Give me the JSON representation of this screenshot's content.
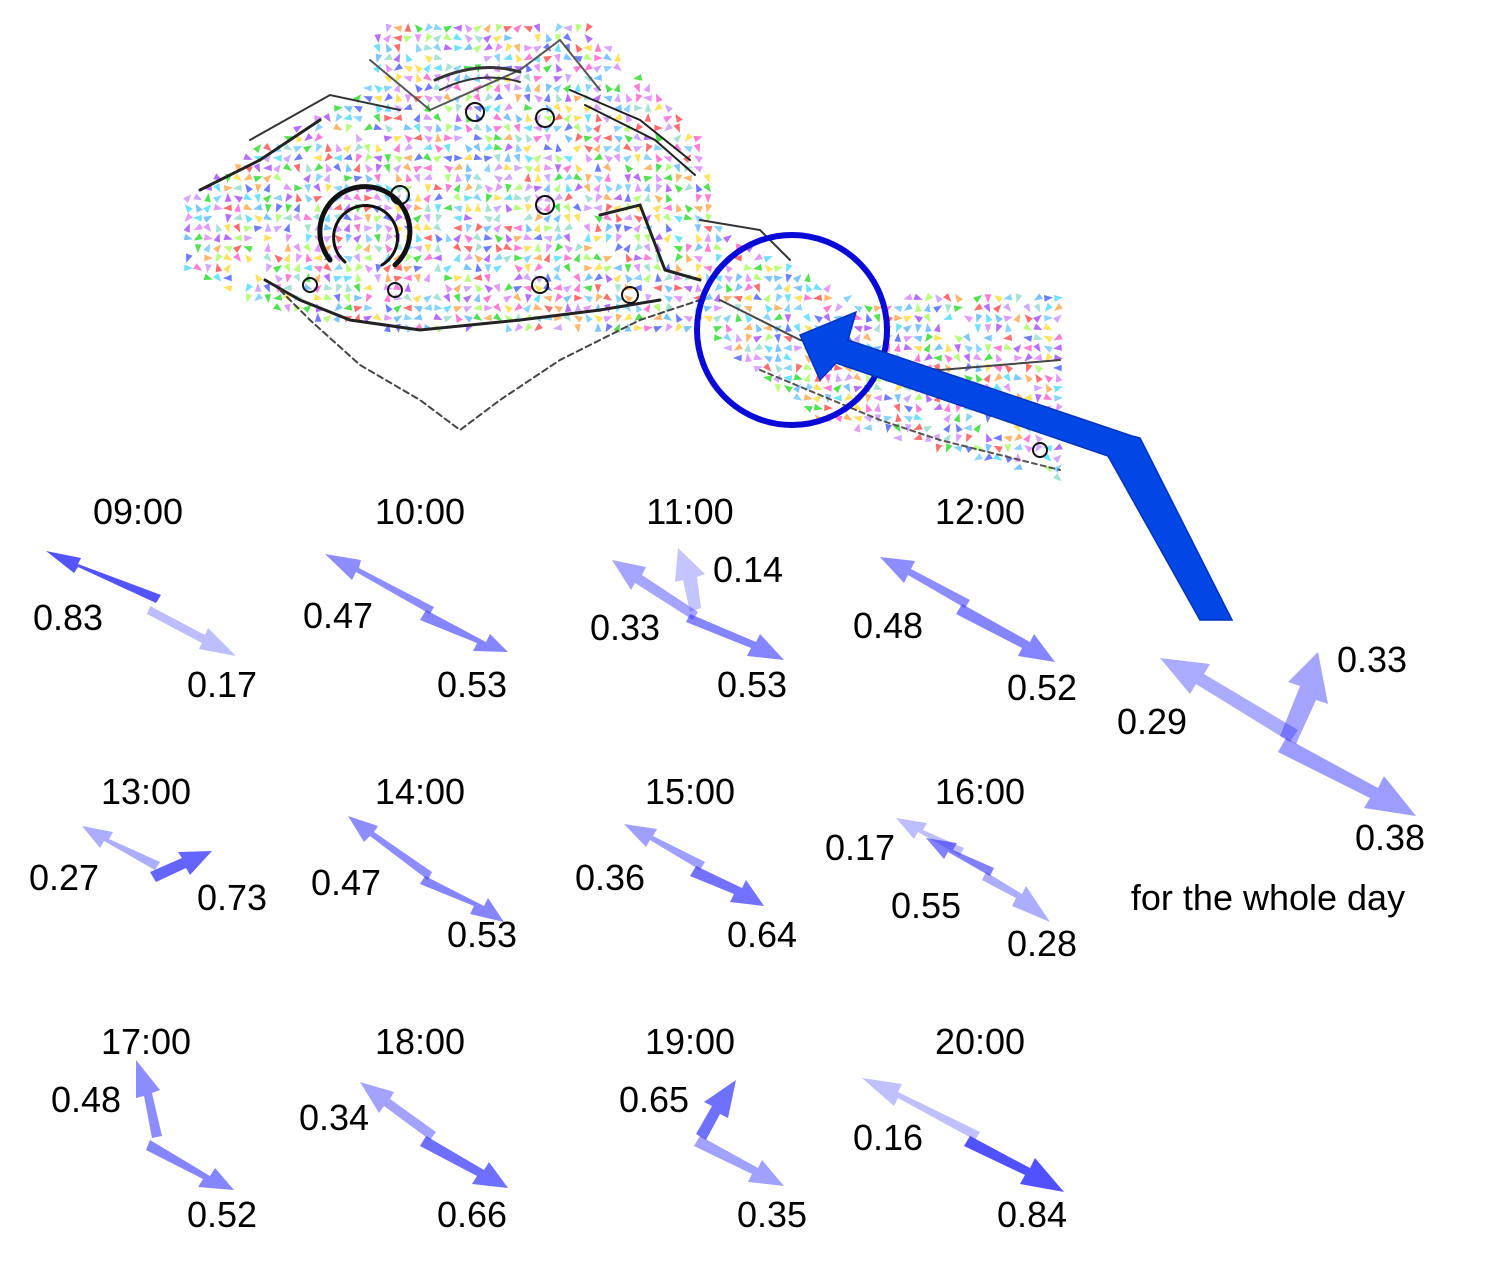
{
  "figure": {
    "whole_day_caption": "for the whole day",
    "arrow_color": "#3333ff",
    "pointer_color": "#0047e6",
    "circle_color": "#0a0ad6"
  },
  "panels": [
    {
      "time": "09:00",
      "arrows": [
        {
          "dir": "nw",
          "value": "0.83",
          "weight": 0.83
        },
        {
          "dir": "se",
          "value": "0.17",
          "weight": 0.17
        }
      ]
    },
    {
      "time": "10:00",
      "arrows": [
        {
          "dir": "nw",
          "value": "0.47",
          "weight": 0.47
        },
        {
          "dir": "se",
          "value": "0.53",
          "weight": 0.53
        }
      ]
    },
    {
      "time": "11:00",
      "arrows": [
        {
          "dir": "nw",
          "value": "0.33",
          "weight": 0.33
        },
        {
          "dir": "n",
          "value": "0.14",
          "weight": 0.14
        },
        {
          "dir": "se",
          "value": "0.53",
          "weight": 0.53
        }
      ]
    },
    {
      "time": "12:00",
      "arrows": [
        {
          "dir": "nw",
          "value": "0.48",
          "weight": 0.48
        },
        {
          "dir": "se",
          "value": "0.52",
          "weight": 0.52
        }
      ]
    },
    {
      "time": "13:00",
      "arrows": [
        {
          "dir": "nw",
          "value": "0.27",
          "weight": 0.27
        },
        {
          "dir": "e",
          "value": "0.73",
          "weight": 0.73
        }
      ]
    },
    {
      "time": "14:00",
      "arrows": [
        {
          "dir": "nw",
          "value": "0.47",
          "weight": 0.47
        },
        {
          "dir": "se",
          "value": "0.53",
          "weight": 0.53
        }
      ]
    },
    {
      "time": "15:00",
      "arrows": [
        {
          "dir": "nw",
          "value": "0.36",
          "weight": 0.36
        },
        {
          "dir": "se",
          "value": "0.64",
          "weight": 0.64
        }
      ]
    },
    {
      "time": "16:00",
      "arrows": [
        {
          "dir": "nw",
          "value": "0.17",
          "weight": 0.17
        },
        {
          "dir": "nw",
          "value": "0.55",
          "weight": 0.55
        },
        {
          "dir": "se",
          "value": "0.28",
          "weight": 0.28
        }
      ]
    },
    {
      "time": "17:00",
      "arrows": [
        {
          "dir": "n",
          "value": "0.48",
          "weight": 0.48
        },
        {
          "dir": "se",
          "value": "0.52",
          "weight": 0.52
        }
      ]
    },
    {
      "time": "18:00",
      "arrows": [
        {
          "dir": "nw",
          "value": "0.34",
          "weight": 0.34
        },
        {
          "dir": "se",
          "value": "0.66",
          "weight": 0.66
        }
      ]
    },
    {
      "time": "19:00",
      "arrows": [
        {
          "dir": "ne",
          "value": "0.65",
          "weight": 0.65
        },
        {
          "dir": "se",
          "value": "0.35",
          "weight": 0.35
        }
      ]
    },
    {
      "time": "20:00",
      "arrows": [
        {
          "dir": "nw",
          "value": "0.16",
          "weight": 0.16
        },
        {
          "dir": "se",
          "value": "0.84",
          "weight": 0.84
        }
      ]
    }
  ],
  "whole_day": {
    "arrows": [
      {
        "dir": "nw",
        "value": "0.29",
        "weight": 0.29
      },
      {
        "dir": "n",
        "value": "0.33",
        "weight": 0.33
      },
      {
        "dir": "se",
        "value": "0.38",
        "weight": 0.38
      }
    ]
  }
}
